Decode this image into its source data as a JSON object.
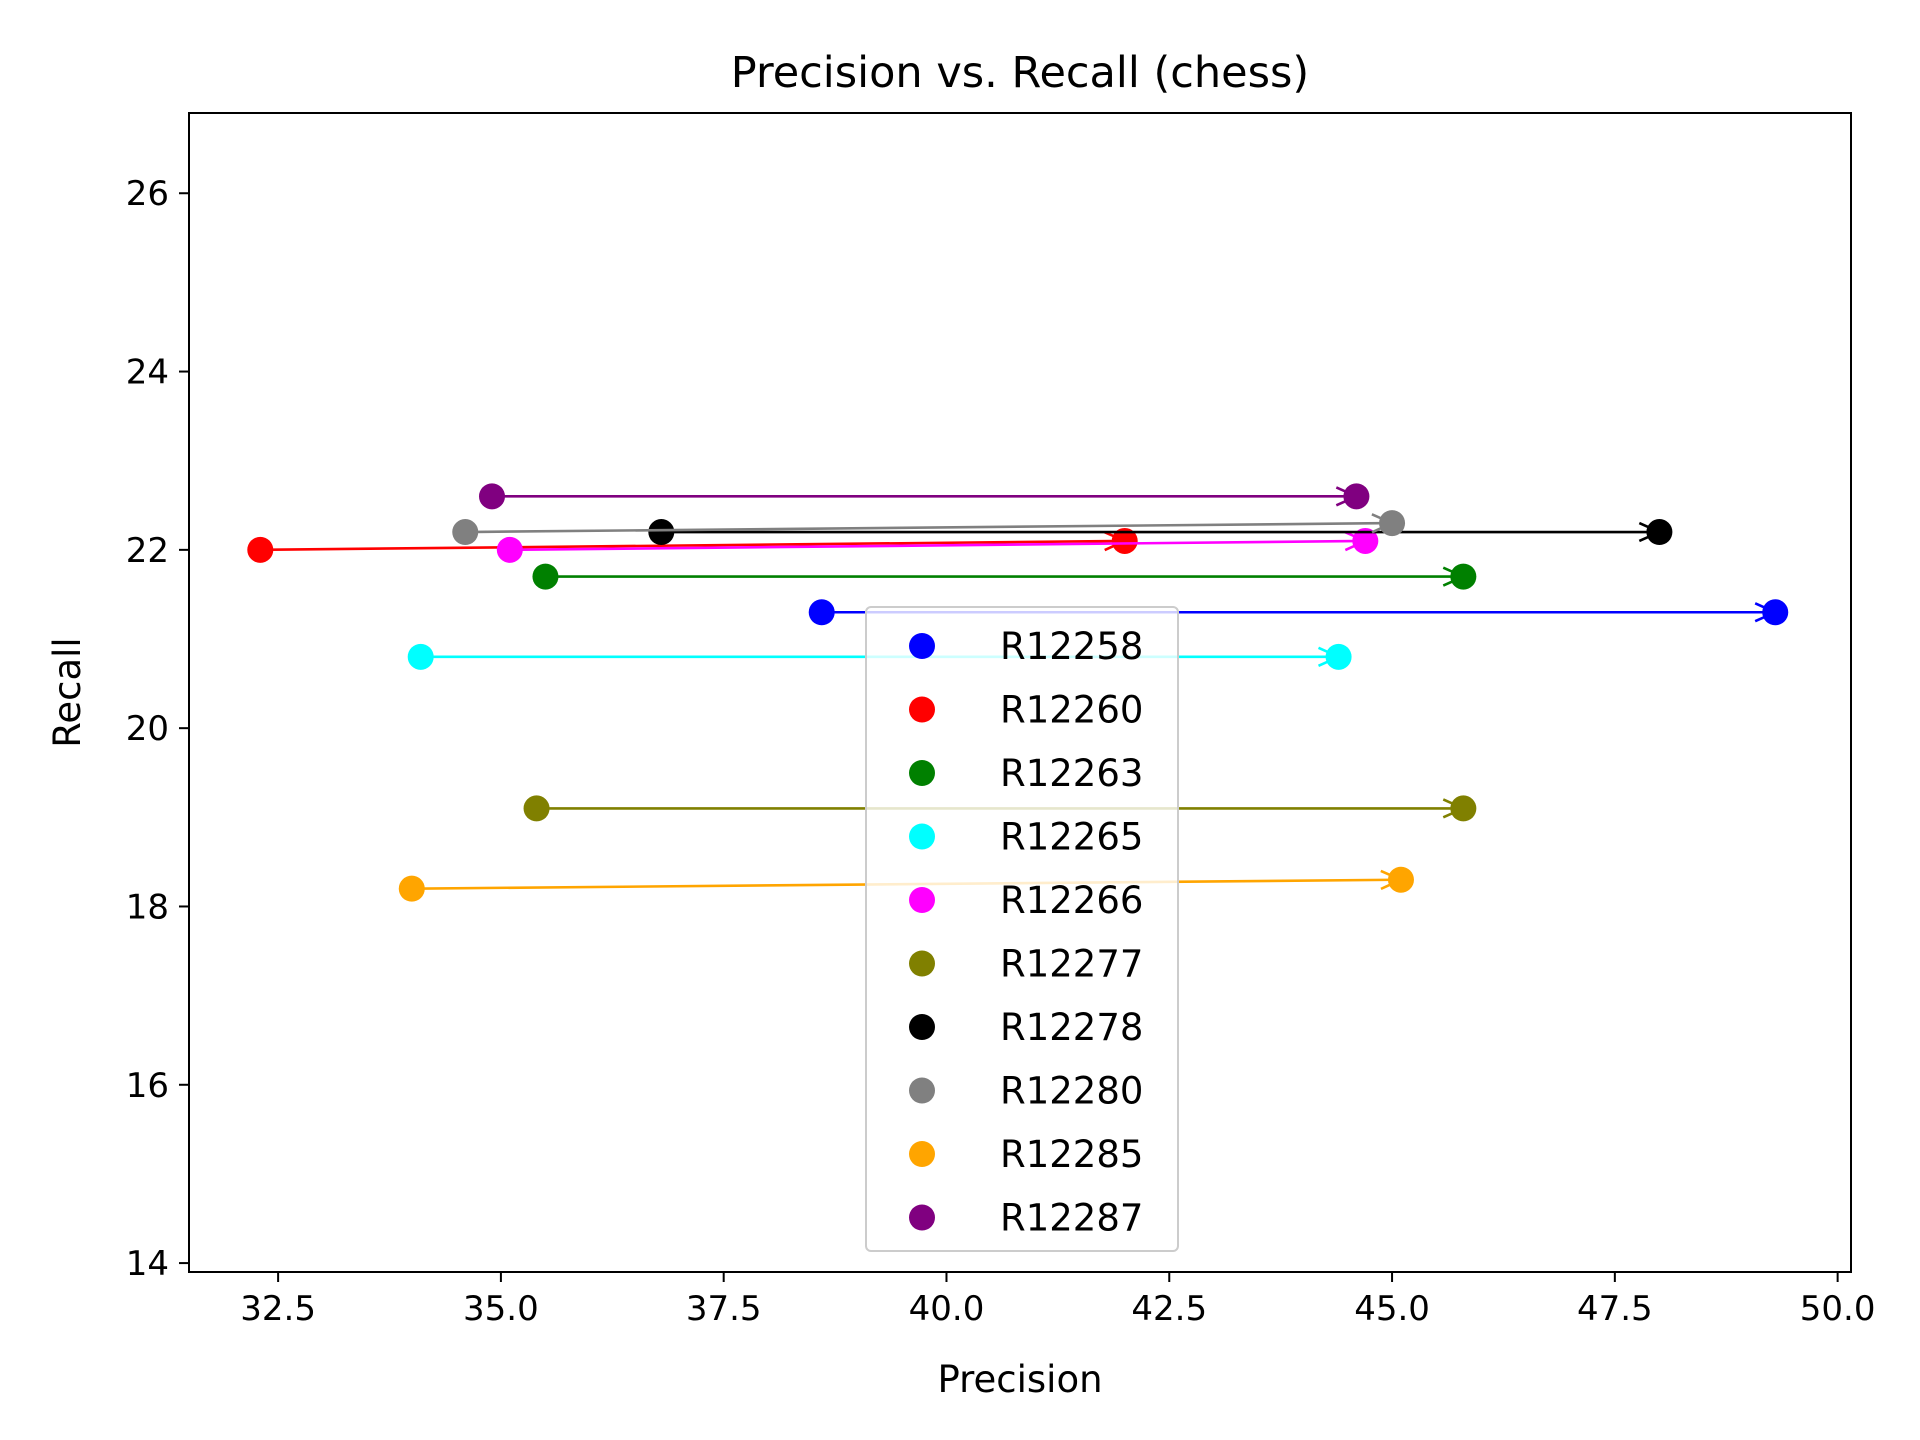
{
  "chart_data": {
    "type": "scatter",
    "title": "Precision vs. Recall (chess)",
    "xlabel": "Precision",
    "ylabel": "Recall",
    "xlim": [
      31.5,
      50.15
    ],
    "ylim": [
      13.9,
      26.9
    ],
    "xticks": [
      32.5,
      35.0,
      37.5,
      40.0,
      42.5,
      45.0,
      47.5,
      50.0
    ],
    "xtick_labels": [
      "32.5",
      "35.0",
      "37.5",
      "40.0",
      "42.5",
      "45.0",
      "47.5",
      "50.0"
    ],
    "yticks": [
      14,
      16,
      18,
      20,
      22,
      24,
      26
    ],
    "ytick_labels": [
      "14",
      "16",
      "18",
      "20",
      "22",
      "24",
      "26"
    ],
    "grid": false,
    "legend_position": "bottom-center",
    "series": [
      {
        "name": "R12258",
        "color": "#0000ff",
        "start": [
          38.6,
          21.3
        ],
        "end": [
          49.3,
          21.3
        ]
      },
      {
        "name": "R12260",
        "color": "#ff0000",
        "start": [
          32.3,
          22.0
        ],
        "end": [
          42.0,
          22.1
        ]
      },
      {
        "name": "R12263",
        "color": "#008000",
        "start": [
          35.5,
          21.7
        ],
        "end": [
          45.8,
          21.7
        ]
      },
      {
        "name": "R12265",
        "color": "#00ffff",
        "start": [
          34.1,
          20.8
        ],
        "end": [
          44.4,
          20.8
        ]
      },
      {
        "name": "R12266",
        "color": "#ff00ff",
        "start": [
          35.1,
          22.0
        ],
        "end": [
          44.7,
          22.1
        ]
      },
      {
        "name": "R12277",
        "color": "#808000",
        "start": [
          35.4,
          19.1
        ],
        "end": [
          45.8,
          19.1
        ]
      },
      {
        "name": "R12278",
        "color": "#000000",
        "start": [
          36.8,
          22.2
        ],
        "end": [
          48.0,
          22.2
        ]
      },
      {
        "name": "R12280",
        "color": "#808080",
        "start": [
          34.6,
          22.2
        ],
        "end": [
          45.0,
          22.3
        ]
      },
      {
        "name": "R12285",
        "color": "#ffa500",
        "start": [
          34.0,
          18.2
        ],
        "end": [
          45.1,
          18.3
        ]
      },
      {
        "name": "R12287",
        "color": "#800080",
        "start": [
          34.9,
          22.6
        ],
        "end": [
          44.6,
          22.6
        ]
      }
    ]
  }
}
